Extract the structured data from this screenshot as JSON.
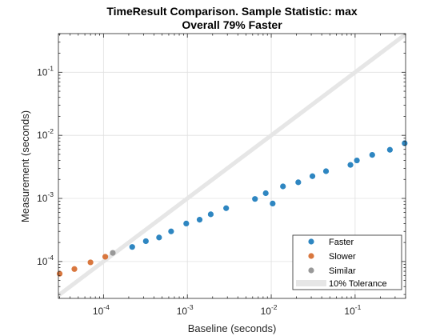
{
  "chart_data": {
    "type": "scatter",
    "title": "TimeResult Comparison. Sample Statistic: max",
    "subtitle": "Overall 79% Faster",
    "xlabel": "Baseline (seconds)",
    "ylabel": "Measurement (seconds)",
    "xscale": "log",
    "yscale": "log",
    "xlim": [
      2.9e-05,
      0.4
    ],
    "ylim": [
      2.6e-05,
      0.41
    ],
    "grid": true,
    "legend_position": "bottom-right",
    "x_ticks": [
      {
        "value": 0.0001,
        "mantissa": "10",
        "exponent": "-4"
      },
      {
        "value": 0.001,
        "mantissa": "10",
        "exponent": "-3"
      },
      {
        "value": 0.01,
        "mantissa": "10",
        "exponent": "-2"
      },
      {
        "value": 0.1,
        "mantissa": "10",
        "exponent": "-1"
      }
    ],
    "y_ticks": [
      {
        "value": 0.0001,
        "mantissa": "10",
        "exponent": "-4"
      },
      {
        "value": 0.001,
        "mantissa": "10",
        "exponent": "-3"
      },
      {
        "value": 0.01,
        "mantissa": "10",
        "exponent": "-2"
      },
      {
        "value": 0.1,
        "mantissa": "10",
        "exponent": "-1"
      }
    ],
    "tolerance": {
      "name": "10% Tolerance",
      "factor": 1.1,
      "color": "#e6e6e6"
    },
    "series": [
      {
        "name": "Faster",
        "color": "#2e86c1",
        "points": [
          {
            "x": 0.00022,
            "y": 0.00017
          },
          {
            "x": 0.00032,
            "y": 0.00021
          },
          {
            "x": 0.00046,
            "y": 0.00024
          },
          {
            "x": 0.00064,
            "y": 0.0003
          },
          {
            "x": 0.00097,
            "y": 0.0004
          },
          {
            "x": 0.0014,
            "y": 0.00046
          },
          {
            "x": 0.0019,
            "y": 0.00056
          },
          {
            "x": 0.0029,
            "y": 0.0007
          },
          {
            "x": 0.0064,
            "y": 0.00098
          },
          {
            "x": 0.0086,
            "y": 0.00121
          },
          {
            "x": 0.0104,
            "y": 0.00083
          },
          {
            "x": 0.0138,
            "y": 0.00155
          },
          {
            "x": 0.021,
            "y": 0.0018
          },
          {
            "x": 0.031,
            "y": 0.00225
          },
          {
            "x": 0.045,
            "y": 0.0027
          },
          {
            "x": 0.088,
            "y": 0.0034
          },
          {
            "x": 0.105,
            "y": 0.004
          },
          {
            "x": 0.16,
            "y": 0.0049
          },
          {
            "x": 0.26,
            "y": 0.0059
          },
          {
            "x": 0.39,
            "y": 0.0075
          }
        ]
      },
      {
        "name": "Slower",
        "color": "#d9773e",
        "points": [
          {
            "x": 3e-05,
            "y": 6.4e-05
          },
          {
            "x": 4.5e-05,
            "y": 7.6e-05
          },
          {
            "x": 7e-05,
            "y": 9.7e-05
          },
          {
            "x": 0.000105,
            "y": 0.000119
          }
        ]
      },
      {
        "name": "Similar",
        "color": "#999999",
        "points": [
          {
            "x": 0.000129,
            "y": 0.000137
          }
        ]
      }
    ]
  }
}
